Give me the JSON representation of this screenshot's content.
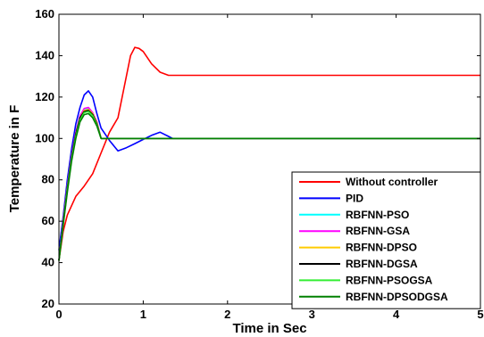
{
  "chart_data": {
    "type": "line",
    "title": "",
    "xlabel": "Time in Sec",
    "ylabel": "Temperature in F",
    "xlim": [
      0,
      5
    ],
    "ylim": [
      20,
      160
    ],
    "xticks": [
      "0",
      "1",
      "2",
      "3",
      "4",
      "5"
    ],
    "yticks": [
      "20",
      "40",
      "60",
      "80",
      "100",
      "120",
      "140",
      "160"
    ],
    "grid": false,
    "legend_position": "bottom-right",
    "series": [
      {
        "name": "Without controller",
        "color": "#ff0000",
        "x": [
          0,
          0.05,
          0.1,
          0.2,
          0.3,
          0.4,
          0.5,
          0.6,
          0.7,
          0.75,
          0.8,
          0.85,
          0.9,
          0.95,
          1.0,
          1.1,
          1.2,
          1.3,
          1.5,
          2.0,
          3.0,
          4.0,
          5.0
        ],
        "y": [
          41,
          55,
          63,
          72,
          77,
          83,
          93,
          103,
          110,
          120,
          130,
          140,
          144,
          143.5,
          142,
          136,
          132,
          130.5,
          130.5,
          130.5,
          130.5,
          130.5,
          130.5
        ]
      },
      {
        "name": "PID",
        "color": "#0000ff",
        "x": [
          0,
          0.05,
          0.1,
          0.15,
          0.2,
          0.25,
          0.3,
          0.35,
          0.4,
          0.45,
          0.5,
          0.6,
          0.7,
          0.8,
          0.9,
          1.0,
          1.1,
          1.2,
          1.3,
          1.35,
          1.4,
          5.0
        ],
        "y": [
          46,
          62,
          80,
          95,
          107,
          115,
          121,
          123,
          120,
          112,
          105,
          99,
          94,
          95.5,
          97.5,
          99.5,
          101.5,
          103,
          101,
          100,
          100,
          100
        ]
      },
      {
        "name": "RBFNN-PSO",
        "color": "#00ffff",
        "x": [
          0,
          0.05,
          0.1,
          0.15,
          0.2,
          0.25,
          0.3,
          0.35,
          0.4,
          0.45,
          0.5,
          5.0
        ],
        "y": [
          41,
          60,
          77,
          92,
          103,
          111,
          114,
          114.5,
          112,
          108,
          100,
          100
        ]
      },
      {
        "name": "RBFNN-GSA",
        "color": "#ff00ff",
        "x": [
          0,
          0.05,
          0.1,
          0.15,
          0.2,
          0.25,
          0.3,
          0.35,
          0.4,
          0.45,
          0.5,
          5.0
        ],
        "y": [
          41,
          60,
          77,
          92,
          103,
          111,
          114.5,
          115,
          112.5,
          108,
          100,
          100
        ]
      },
      {
        "name": "RBFNN-DPSO",
        "color": "#ffcc00",
        "x": [
          0,
          0.05,
          0.1,
          0.15,
          0.2,
          0.25,
          0.3,
          0.35,
          0.4,
          0.45,
          0.5,
          5.0
        ],
        "y": [
          41,
          59,
          76,
          91,
          102,
          110,
          113.5,
          114,
          112,
          107.5,
          100,
          100
        ]
      },
      {
        "name": "RBFNN-DGSA",
        "color": "#000000",
        "x": [
          0,
          0.05,
          0.1,
          0.15,
          0.2,
          0.25,
          0.3,
          0.35,
          0.4,
          0.45,
          0.5,
          5.0
        ],
        "y": [
          41,
          59,
          76,
          91,
          102,
          110,
          113,
          113.5,
          111.5,
          107,
          100,
          100
        ]
      },
      {
        "name": "RBFNN-PSOGSA",
        "color": "#33ee33",
        "x": [
          0,
          0.05,
          0.1,
          0.15,
          0.2,
          0.25,
          0.3,
          0.35,
          0.4,
          0.45,
          0.5,
          5.0
        ],
        "y": [
          41,
          58,
          75,
          90,
          101,
          109,
          112.5,
          113,
          111,
          106.5,
          100,
          100
        ]
      },
      {
        "name": "RBFNN-DPSODGSA",
        "color": "#008000",
        "x": [
          0,
          0.05,
          0.1,
          0.15,
          0.2,
          0.25,
          0.3,
          0.35,
          0.4,
          0.45,
          0.5,
          5.0
        ],
        "y": [
          41,
          58,
          74,
          89,
          100,
          108,
          111.5,
          112,
          110,
          106,
          100,
          100
        ]
      }
    ]
  }
}
